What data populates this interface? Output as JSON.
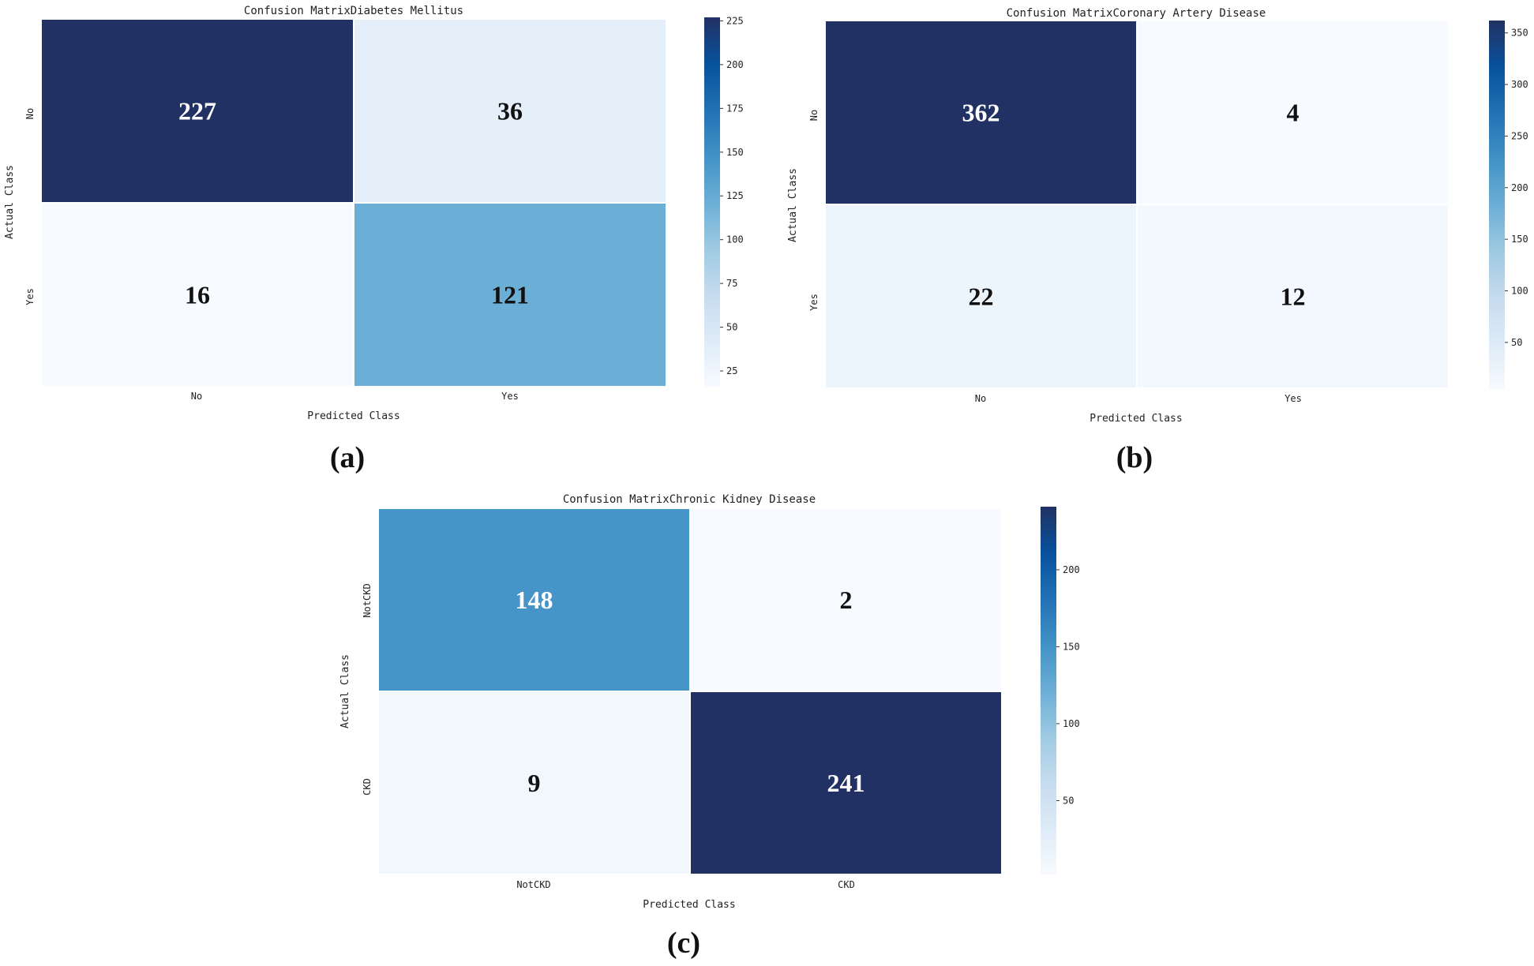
{
  "figure": {
    "panel_labels": [
      "(a)",
      "(b)",
      "(c)"
    ]
  },
  "chart_data": [
    {
      "type": "heatmap",
      "title": "Confusion MatrixDiabetes Mellitus",
      "xlabel": "Predicted Class",
      "ylabel": "Actual Class",
      "x_categories": [
        "No",
        "Yes"
      ],
      "y_categories": [
        "No",
        "Yes"
      ],
      "matrix": [
        [
          227,
          36
        ],
        [
          16,
          121
        ]
      ],
      "colormap": "Blues",
      "colorbar": {
        "min": 16,
        "max": 227,
        "ticks": [
          25,
          50,
          75,
          100,
          125,
          150,
          175,
          200,
          225
        ]
      }
    },
    {
      "type": "heatmap",
      "title": "Confusion MatrixCoronary Artery Disease",
      "xlabel": "Predicted Class",
      "ylabel": "Actual Class",
      "x_categories": [
        "No",
        "Yes"
      ],
      "y_categories": [
        "No",
        "Yes"
      ],
      "matrix": [
        [
          362,
          4
        ],
        [
          22,
          12
        ]
      ],
      "colormap": "Blues",
      "colorbar": {
        "min": 4,
        "max": 362,
        "ticks": [
          50,
          100,
          150,
          200,
          250,
          300,
          350
        ]
      }
    },
    {
      "type": "heatmap",
      "title": "Confusion MatrixChronic Kidney Disease",
      "xlabel": "Predicted Class",
      "ylabel": "Actual Class",
      "x_categories": [
        "NotCKD",
        "CKD"
      ],
      "y_categories": [
        "NotCKD",
        "CKD"
      ],
      "matrix": [
        [
          148,
          2
        ],
        [
          9,
          241
        ]
      ],
      "colormap": "Blues",
      "colorbar": {
        "min": 2,
        "max": 241,
        "ticks": [
          50,
          100,
          150,
          200
        ]
      }
    }
  ]
}
